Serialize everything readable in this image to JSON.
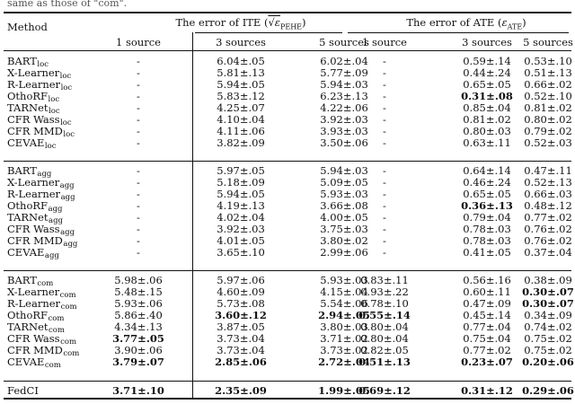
{
  "page": {
    "top_fragment": "same as those of \"com\"."
  },
  "table": {
    "method_header": "Method",
    "group_headers": [
      {
        "prefix": "The error of ITE (",
        "metric": "√ε",
        "metric_sub": "PEHE",
        "suffix": ")"
      },
      {
        "prefix": "The error of ATE (",
        "metric": "ε",
        "metric_sub": "ATE",
        "suffix": ")"
      }
    ],
    "sub_headers": [
      "1 source",
      "3 sources",
      "5 sources",
      "1 source",
      "3 sources",
      "5 sources"
    ],
    "blocks": [
      {
        "rows": [
          {
            "base": "BART",
            "sub": "loc",
            "cells": [
              {
                "v": "-"
              },
              {
                "v": "6.04±.05"
              },
              {
                "v": "6.02±.04"
              },
              {
                "v": "-"
              },
              {
                "v": "0.59±.14"
              },
              {
                "v": "0.53±.10"
              }
            ]
          },
          {
            "base": "X-Learner",
            "sub": "loc",
            "cells": [
              {
                "v": "-"
              },
              {
                "v": "5.81±.13"
              },
              {
                "v": "5.77±.09"
              },
              {
                "v": "-"
              },
              {
                "v": "0.44±.24"
              },
              {
                "v": "0.51±.13"
              }
            ]
          },
          {
            "base": "R-Learner",
            "sub": "loc",
            "cells": [
              {
                "v": "-"
              },
              {
                "v": "5.94±.05"
              },
              {
                "v": "5.94±.03"
              },
              {
                "v": "-"
              },
              {
                "v": "0.65±.05"
              },
              {
                "v": "0.66±.02"
              }
            ]
          },
          {
            "base": "OthoRF",
            "sub": "loc",
            "cells": [
              {
                "v": "-"
              },
              {
                "v": "5.83±.12"
              },
              {
                "v": "6.23±.13"
              },
              {
                "v": "-"
              },
              {
                "v": "0.31±.08",
                "b": true
              },
              {
                "v": "0.52±.10"
              }
            ]
          },
          {
            "base": "TARNet",
            "sub": "loc",
            "cells": [
              {
                "v": "-"
              },
              {
                "v": "4.25±.07"
              },
              {
                "v": "4.22±.06"
              },
              {
                "v": "-"
              },
              {
                "v": "0.85±.04"
              },
              {
                "v": "0.81±.02"
              }
            ]
          },
          {
            "base": "CFR Wass",
            "sub": "loc",
            "cells": [
              {
                "v": "-"
              },
              {
                "v": "4.10±.04"
              },
              {
                "v": "3.92±.03"
              },
              {
                "v": "-"
              },
              {
                "v": "0.81±.02"
              },
              {
                "v": "0.80±.02"
              }
            ]
          },
          {
            "base": "CFR MMD",
            "sub": "loc",
            "cells": [
              {
                "v": "-"
              },
              {
                "v": "4.11±.06"
              },
              {
                "v": "3.93±.03"
              },
              {
                "v": "-"
              },
              {
                "v": "0.80±.03"
              },
              {
                "v": "0.79±.02"
              }
            ]
          },
          {
            "base": "CEVAE",
            "sub": "loc",
            "cells": [
              {
                "v": "-"
              },
              {
                "v": "3.82±.09"
              },
              {
                "v": "3.50±.06"
              },
              {
                "v": "-"
              },
              {
                "v": "0.63±.11"
              },
              {
                "v": "0.52±.03"
              }
            ]
          }
        ]
      },
      {
        "rows": [
          {
            "base": "BART",
            "sub": "agg",
            "cells": [
              {
                "v": "-"
              },
              {
                "v": "5.97±.05"
              },
              {
                "v": "5.94±.03"
              },
              {
                "v": "-"
              },
              {
                "v": "0.64±.14"
              },
              {
                "v": "0.47±.11"
              }
            ]
          },
          {
            "base": "X-Learner",
            "sub": "agg",
            "cells": [
              {
                "v": "-"
              },
              {
                "v": "5.18±.09"
              },
              {
                "v": "5.09±.05"
              },
              {
                "v": "-"
              },
              {
                "v": "0.46±.24"
              },
              {
                "v": "0.52±.13"
              }
            ]
          },
          {
            "base": "R-Learner",
            "sub": "agg",
            "cells": [
              {
                "v": "-"
              },
              {
                "v": "5.94±.05"
              },
              {
                "v": "5.93±.03"
              },
              {
                "v": "-"
              },
              {
                "v": "0.65±.05"
              },
              {
                "v": "0.66±.03"
              }
            ]
          },
          {
            "base": "OthoRF",
            "sub": "agg",
            "cells": [
              {
                "v": "-"
              },
              {
                "v": "4.19±.13"
              },
              {
                "v": "3.66±.08"
              },
              {
                "v": "-"
              },
              {
                "v": "0.36±.13",
                "b": true
              },
              {
                "v": "0.48±.12"
              }
            ]
          },
          {
            "base": "TARNet",
            "sub": "agg",
            "cells": [
              {
                "v": "-"
              },
              {
                "v": "4.02±.04"
              },
              {
                "v": "4.00±.05"
              },
              {
                "v": "-"
              },
              {
                "v": "0.79±.04"
              },
              {
                "v": "0.77±.02"
              }
            ]
          },
          {
            "base": "CFR Wass",
            "sub": "agg",
            "cells": [
              {
                "v": "-"
              },
              {
                "v": "3.92±.03"
              },
              {
                "v": "3.75±.03"
              },
              {
                "v": "-"
              },
              {
                "v": "0.78±.03"
              },
              {
                "v": "0.76±.02"
              }
            ]
          },
          {
            "base": "CFR MMD",
            "sub": "agg",
            "cells": [
              {
                "v": "-"
              },
              {
                "v": "4.01±.05"
              },
              {
                "v": "3.80±.02"
              },
              {
                "v": "-"
              },
              {
                "v": "0.78±.03"
              },
              {
                "v": "0.76±.02"
              }
            ]
          },
          {
            "base": "CEVAE",
            "sub": "agg",
            "cells": [
              {
                "v": "-"
              },
              {
                "v": "3.65±.10"
              },
              {
                "v": "2.99±.06"
              },
              {
                "v": "-"
              },
              {
                "v": "0.41±.05"
              },
              {
                "v": "0.37±.04"
              }
            ]
          }
        ]
      },
      {
        "rows": [
          {
            "base": "BART",
            "sub": "com",
            "cells": [
              {
                "v": "5.98±.06"
              },
              {
                "v": "5.97±.06"
              },
              {
                "v": "5.93±.03"
              },
              {
                "v": "0.83±.11"
              },
              {
                "v": "0.56±.16"
              },
              {
                "v": "0.38±.09"
              }
            ]
          },
          {
            "base": "X-Learner",
            "sub": "com",
            "cells": [
              {
                "v": "5.48±.15"
              },
              {
                "v": "4.60±.09"
              },
              {
                "v": "4.15±.04"
              },
              {
                "v": "0.93±.22"
              },
              {
                "v": "0.60±.11"
              },
              {
                "v": "0.30±.07",
                "b": true
              }
            ]
          },
          {
            "base": "R-Learner",
            "sub": "com",
            "cells": [
              {
                "v": "5.93±.06"
              },
              {
                "v": "5.73±.08"
              },
              {
                "v": "5.54±.06"
              },
              {
                "v": "0.78±.10"
              },
              {
                "v": "0.47±.09"
              },
              {
                "v": "0.30±.07",
                "b": true
              }
            ]
          },
          {
            "base": "OthoRF",
            "sub": "com",
            "cells": [
              {
                "v": "5.86±.40"
              },
              {
                "v": "3.60±.12",
                "b": true
              },
              {
                "v": "2.94±.05",
                "b": true
              },
              {
                "v": "0.55±.14",
                "b": true
              },
              {
                "v": "0.45±.14"
              },
              {
                "v": "0.34±.09"
              }
            ]
          },
          {
            "base": "TARNet",
            "sub": "com",
            "cells": [
              {
                "v": "4.34±.13"
              },
              {
                "v": "3.87±.05"
              },
              {
                "v": "3.80±.03"
              },
              {
                "v": "0.80±.04"
              },
              {
                "v": "0.77±.04"
              },
              {
                "v": "0.74±.02"
              }
            ]
          },
          {
            "base": "CFR Wass",
            "sub": "com",
            "cells": [
              {
                "v": "3.77±.05",
                "b": true
              },
              {
                "v": "3.73±.04"
              },
              {
                "v": "3.71±.02"
              },
              {
                "v": "0.80±.04"
              },
              {
                "v": "0.75±.04"
              },
              {
                "v": "0.75±.02"
              }
            ]
          },
          {
            "base": "CFR MMD",
            "sub": "com",
            "cells": [
              {
                "v": "3.90±.06"
              },
              {
                "v": "3.73±.04"
              },
              {
                "v": "3.73±.02"
              },
              {
                "v": "0.82±.05"
              },
              {
                "v": "0.77±.02"
              },
              {
                "v": "0.75±.02"
              }
            ]
          },
          {
            "base": "CEVAE",
            "sub": "com",
            "cells": [
              {
                "v": "3.79±.07",
                "b": true
              },
              {
                "v": "2.85±.06",
                "b": true
              },
              {
                "v": "2.72±.04",
                "b": true
              },
              {
                "v": "0.51±.13",
                "b": true
              },
              {
                "v": "0.23±.07",
                "b": true
              },
              {
                "v": "0.20±.06",
                "b": true
              }
            ]
          }
        ]
      },
      {
        "rows": [
          {
            "base": "FedCI",
            "sub": "",
            "cells": [
              {
                "v": "3.71±.10",
                "b": true
              },
              {
                "v": "2.35±.09",
                "b": true
              },
              {
                "v": "1.99±.05",
                "b": true
              },
              {
                "v": "0.69±.12",
                "b": true
              },
              {
                "v": "0.31±.12",
                "b": true
              },
              {
                "v": "0.29±.06",
                "b": true
              }
            ]
          }
        ]
      }
    ]
  }
}
